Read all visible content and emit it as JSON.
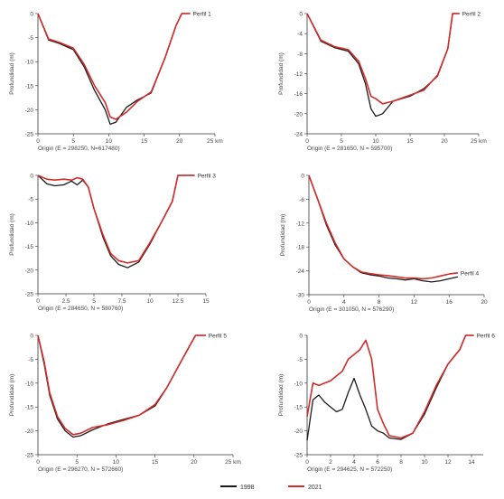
{
  "colors": {
    "series_1998": "#1a1a1a",
    "series_2021": "#d42a2a",
    "axis": "#333333"
  },
  "legend": {
    "labels": [
      "1998",
      "2021"
    ]
  },
  "chart_data": [
    {
      "type": "line",
      "id": "p1",
      "panel_label": "Perfil 1",
      "ylabel": "Profundidad (m)",
      "origin": "Origin (E = 298250, N=617480)",
      "xlim": [
        0,
        25
      ],
      "xticks": [
        0,
        5,
        10,
        15,
        20,
        25
      ],
      "xtick_labels": [
        "0",
        "5",
        "10",
        "15",
        "20",
        "25 km"
      ],
      "ylim": [
        -25,
        0
      ],
      "yticks": [
        0,
        -5,
        -10,
        -15,
        -20,
        -25
      ],
      "series": [
        {
          "name": "1998",
          "x": [
            0,
            1.5,
            3,
            5,
            6.5,
            8,
            9.5,
            10.2,
            11,
            12.5,
            14,
            16,
            18,
            19.5,
            20.3,
            20.8,
            21.5
          ],
          "y": [
            0,
            -5.5,
            -6.2,
            -7.5,
            -11,
            -16,
            -20,
            -23,
            -22.6,
            -19.5,
            -18,
            -16.5,
            -9,
            -2.5,
            0,
            0,
            0
          ]
        },
        {
          "name": "2021",
          "x": [
            0,
            1.5,
            3,
            5,
            6.5,
            8,
            9.5,
            10.2,
            11,
            12.5,
            14,
            16,
            18,
            19.5,
            20.3,
            20.8,
            21.5
          ],
          "y": [
            0,
            -5.3,
            -6,
            -7.2,
            -10.5,
            -15,
            -18.5,
            -21.5,
            -22,
            -20.5,
            -18.3,
            -16.3,
            -9,
            -2.5,
            0,
            0,
            0
          ]
        }
      ]
    },
    {
      "type": "line",
      "id": "p2",
      "panel_label": "Perfil 2",
      "ylabel": "Profundidad (m)",
      "origin": "Origin (E = 281650, N = 595700)",
      "xlim": [
        0,
        25
      ],
      "xticks": [
        0,
        5,
        10,
        15,
        20,
        25
      ],
      "xtick_labels": [
        "0",
        "5",
        "10",
        "15",
        "20",
        "25 km"
      ],
      "ylim": [
        -24,
        0
      ],
      "yticks": [
        0,
        -4,
        -8,
        -12,
        -16,
        -20,
        -24
      ],
      "series": [
        {
          "name": "1998",
          "x": [
            0,
            2,
            4,
            6,
            7.5,
            8.5,
            9.3,
            10,
            11,
            12.5,
            15,
            17,
            19,
            20.5,
            21.2,
            21.6,
            22.2
          ],
          "y": [
            0,
            -5.5,
            -6.8,
            -7.5,
            -10,
            -14,
            -19,
            -20.5,
            -20,
            -17.5,
            -16.5,
            -15,
            -12.5,
            -7,
            0,
            0,
            0
          ]
        },
        {
          "name": "2021",
          "x": [
            0,
            2,
            4,
            6,
            7.5,
            8.5,
            9.3,
            10,
            11,
            12.5,
            15,
            17,
            19,
            20.5,
            21.2,
            21.6,
            22.2
          ],
          "y": [
            0,
            -5.3,
            -6.6,
            -7.2,
            -9.5,
            -13,
            -16.5,
            -17,
            -18,
            -17.5,
            -16.3,
            -15.3,
            -12.3,
            -7,
            0,
            0,
            0
          ]
        }
      ]
    },
    {
      "type": "line",
      "id": "p3",
      "panel_label": "Perfil 3",
      "ylabel": "Profundidad (m)",
      "origin": "Origin (E = 284650, N = 580760)",
      "xlim": [
        0,
        15
      ],
      "xticks": [
        0,
        2.5,
        5,
        7.5,
        10,
        12.5,
        15
      ],
      "xtick_labels": [
        "0",
        "2.5",
        "5",
        "7.5",
        "10",
        "12.5",
        "15"
      ],
      "ylim": [
        -25,
        0
      ],
      "yticks": [
        0,
        -5,
        -10,
        -15,
        -20,
        -25
      ],
      "series": [
        {
          "name": "1998",
          "x": [
            0,
            0.8,
            1.5,
            2.3,
            3,
            3.5,
            4,
            4.5,
            5,
            5.8,
            6.5,
            7.2,
            8,
            9,
            10,
            11,
            12,
            12.5,
            13.2,
            14
          ],
          "y": [
            0,
            -1.8,
            -2.2,
            -2,
            -1.2,
            -2,
            -1,
            -2.5,
            -7,
            -13,
            -17,
            -18.8,
            -19.5,
            -18.3,
            -14.5,
            -10,
            -5.5,
            0,
            0,
            0
          ]
        },
        {
          "name": "2021",
          "x": [
            0,
            0.8,
            1.5,
            2.3,
            3,
            3.5,
            4,
            4.5,
            5,
            5.8,
            6.5,
            7.2,
            8,
            9,
            10,
            11,
            12,
            12.5,
            13.2,
            14
          ],
          "y": [
            0,
            -0.8,
            -1,
            -0.8,
            -1,
            -0.5,
            -0.8,
            -2.5,
            -7,
            -12.5,
            -16.5,
            -18,
            -18.5,
            -18,
            -14.2,
            -10,
            -5.5,
            0,
            0,
            0
          ]
        }
      ]
    },
    {
      "type": "line",
      "id": "p4",
      "panel_label": "Perfil 4",
      "ylabel": "Profundidad (m)",
      "origin": "Origin (E = 301050, N = 576290)",
      "xlim": [
        0,
        20
      ],
      "xticks": [
        0,
        4,
        8,
        12,
        16,
        20
      ],
      "xtick_labels": [
        "0",
        "4",
        "8",
        "12",
        "16",
        "20"
      ],
      "ylim": [
        -30,
        0
      ],
      "yticks": [
        0,
        -6,
        -12,
        -18,
        -24,
        -30
      ],
      "series": [
        {
          "name": "1998",
          "x": [
            0,
            1,
            2,
            3,
            4,
            5,
            6,
            7,
            8,
            9,
            10,
            11,
            12,
            13,
            14,
            15,
            16,
            17
          ],
          "y": [
            0,
            -6,
            -12.5,
            -17.5,
            -21,
            -23,
            -24.5,
            -25,
            -25.3,
            -25.8,
            -26,
            -26.3,
            -26,
            -26.5,
            -26.8,
            -26.5,
            -26,
            -25.5
          ]
        },
        {
          "name": "2021",
          "x": [
            0,
            1,
            2,
            3,
            4,
            5,
            6,
            7,
            8,
            9,
            10,
            11,
            12,
            13,
            14,
            15,
            16,
            17
          ],
          "y": [
            0,
            -6,
            -12,
            -17,
            -21,
            -23,
            -24.3,
            -24.7,
            -25,
            -25.2,
            -25.5,
            -25.8,
            -25.8,
            -26,
            -25.8,
            -25.3,
            -24.8,
            -24.5
          ]
        }
      ]
    },
    {
      "type": "line",
      "id": "p5",
      "panel_label": "Perfil 5",
      "ylabel": "Profundidad (m)",
      "origin": "Origin (E = 296270, N = 572660)",
      "xlim": [
        0,
        25
      ],
      "xticks": [
        0,
        5,
        10,
        15,
        20,
        25
      ],
      "xtick_labels": [
        "0",
        "5",
        "10",
        "15",
        "20",
        "25 km"
      ],
      "ylim": [
        -25,
        0
      ],
      "yticks": [
        0,
        -5,
        -10,
        -15,
        -20,
        -25
      ],
      "series": [
        {
          "name": "1998",
          "x": [
            0,
            0.8,
            1.5,
            2.5,
            3.5,
            4.5,
            5.5,
            7,
            9,
            11,
            13,
            15,
            16.5,
            18,
            19.5,
            20.2,
            20.7,
            21.5
          ],
          "y": [
            0,
            -6,
            -12.5,
            -17.5,
            -20,
            -21.3,
            -21,
            -19.8,
            -18.5,
            -17.6,
            -16.7,
            -14.8,
            -11,
            -6.5,
            -2,
            0,
            0,
            0
          ]
        },
        {
          "name": "2021",
          "x": [
            0,
            0.8,
            1.5,
            2.5,
            3.5,
            4.5,
            5.5,
            7,
            9,
            11,
            13,
            15,
            16.5,
            18,
            19.5,
            20.2,
            20.7,
            21.5
          ],
          "y": [
            0,
            -5.5,
            -12,
            -17,
            -19.5,
            -20.8,
            -20.5,
            -19.3,
            -18.7,
            -17.8,
            -16.7,
            -14.5,
            -11,
            -6.5,
            -2,
            0,
            0,
            0
          ]
        }
      ]
    },
    {
      "type": "line",
      "id": "p6",
      "panel_label": "Perfil 6",
      "ylabel": "Profundidad (m)",
      "origin": "Origin (E = 294625, N = 572250)",
      "xlim": [
        0,
        15
      ],
      "xticks": [
        0,
        2,
        4,
        6,
        8,
        10,
        12,
        14
      ],
      "xtick_labels": [
        "0",
        "2",
        "4",
        "6",
        "8",
        "10",
        "12",
        "14"
      ],
      "ylim": [
        -25,
        0
      ],
      "yticks": [
        0,
        -5,
        -10,
        -15,
        -20,
        -25
      ],
      "series": [
        {
          "name": "1998",
          "x": [
            0,
            0.5,
            1,
            1.5,
            2,
            2.5,
            3,
            3.5,
            4,
            4.5,
            5,
            5.5,
            6,
            6.5,
            7,
            8,
            9,
            10,
            11,
            12,
            13,
            13.5,
            14.2
          ],
          "y": [
            -22,
            -13.5,
            -12.5,
            -14,
            -15,
            -16,
            -15.5,
            -12,
            -9,
            -12.5,
            -15.5,
            -19,
            -20,
            -20.5,
            -21.5,
            -21.8,
            -20.5,
            -16.5,
            -11,
            -6,
            -3,
            0,
            0
          ]
        },
        {
          "name": "2021",
          "x": [
            0,
            0.5,
            1,
            1.5,
            2,
            2.5,
            3,
            3.5,
            4,
            4.5,
            5,
            5.5,
            6,
            6.5,
            7,
            8,
            9,
            10,
            11,
            12,
            13,
            13.5,
            14.2
          ],
          "y": [
            -17,
            -10,
            -10.5,
            -10,
            -9.5,
            -8.5,
            -7.5,
            -5,
            -4,
            -3,
            -1,
            -5,
            -15.5,
            -18.5,
            -21,
            -21.5,
            -20.5,
            -16,
            -10.5,
            -6,
            -3,
            0,
            0
          ]
        }
      ]
    }
  ]
}
